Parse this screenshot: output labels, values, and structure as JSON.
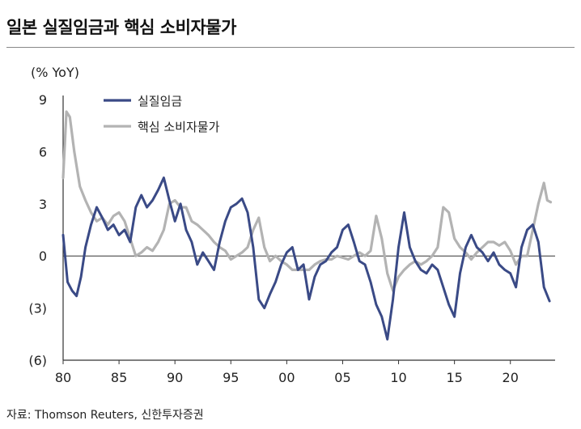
{
  "title": "일본 실질임금과 핵심 소비자물가",
  "source": "자료: Thomson Reuters, 신한투자증권",
  "colors": {
    "real_wage": "#3a4a86",
    "core_cpi": "#b3b3b3",
    "axis": "#333333"
  },
  "chart_data": {
    "type": "line",
    "title": "일본 실질임금과 핵심 소비자물가",
    "ylabel": "(% YoY)",
    "xlabel": "",
    "ylim": [
      -6,
      9
    ],
    "xlim": [
      1980,
      2024
    ],
    "yticks": [
      9,
      6,
      3,
      0,
      -3,
      -6
    ],
    "ytick_labels": [
      "9",
      "6",
      "3",
      "0",
      "(3)",
      "(6)"
    ],
    "xticks": [
      1980,
      1985,
      1990,
      1995,
      2000,
      2005,
      2010,
      2015,
      2020
    ],
    "xtick_labels": [
      "80",
      "85",
      "90",
      "95",
      "00",
      "05",
      "10",
      "15",
      "20"
    ],
    "legend_position": "top-left",
    "series": [
      {
        "name": "실질임금",
        "color": "#3a4a86",
        "x": [
          1980.0,
          1980.4,
          1980.8,
          1981.2,
          1981.6,
          1982.0,
          1982.5,
          1983.0,
          1983.5,
          1984.0,
          1984.5,
          1985.0,
          1985.5,
          1986.0,
          1986.5,
          1987.0,
          1987.5,
          1988.0,
          1988.5,
          1989.0,
          1989.5,
          1990.0,
          1990.5,
          1991.0,
          1991.5,
          1992.0,
          1992.5,
          1993.0,
          1993.5,
          1994.0,
          1994.5,
          1995.0,
          1995.5,
          1996.0,
          1996.5,
          1997.0,
          1997.5,
          1998.0,
          1998.5,
          1999.0,
          1999.5,
          2000.0,
          2000.5,
          2001.0,
          2001.5,
          2002.0,
          2002.5,
          2003.0,
          2003.5,
          2004.0,
          2004.5,
          2005.0,
          2005.5,
          2006.0,
          2006.5,
          2007.0,
          2007.5,
          2008.0,
          2008.5,
          2009.0,
          2009.5,
          2010.0,
          2010.5,
          2011.0,
          2011.5,
          2012.0,
          2012.5,
          2013.0,
          2013.5,
          2014.0,
          2014.5,
          2015.0,
          2015.5,
          2016.0,
          2016.5,
          2017.0,
          2017.5,
          2018.0,
          2018.5,
          2019.0,
          2019.5,
          2020.0,
          2020.5,
          2021.0,
          2021.5,
          2022.0,
          2022.5,
          2023.0,
          2023.5
        ],
        "values": [
          1.2,
          -1.5,
          -2.0,
          -2.3,
          -1.2,
          0.5,
          1.8,
          2.8,
          2.2,
          1.5,
          1.8,
          1.2,
          1.5,
          0.8,
          2.8,
          3.5,
          2.8,
          3.2,
          3.8,
          4.5,
          3.2,
          2.0,
          3.0,
          1.5,
          0.8,
          -0.5,
          0.2,
          -0.3,
          -0.8,
          0.8,
          2.0,
          2.8,
          3.0,
          3.3,
          2.5,
          0.5,
          -2.5,
          -3.0,
          -2.2,
          -1.5,
          -0.5,
          0.2,
          0.5,
          -0.8,
          -0.5,
          -2.5,
          -1.2,
          -0.5,
          -0.3,
          0.2,
          0.5,
          1.5,
          1.8,
          0.8,
          -0.3,
          -0.5,
          -1.5,
          -2.8,
          -3.5,
          -4.8,
          -2.5,
          0.5,
          2.5,
          0.5,
          -0.3,
          -0.8,
          -1.0,
          -0.5,
          -0.8,
          -1.8,
          -2.8,
          -3.5,
          -1.0,
          0.5,
          1.2,
          0.5,
          0.2,
          -0.3,
          0.2,
          -0.5,
          -0.8,
          -1.0,
          -1.8,
          0.5,
          1.5,
          1.8,
          0.8,
          -1.8,
          -2.6
        ]
      },
      {
        "name": "핵심 소비자물가",
        "color": "#b3b3b3",
        "x": [
          1980.0,
          1980.3,
          1980.6,
          1981.0,
          1981.5,
          1982.0,
          1982.5,
          1983.0,
          1983.5,
          1984.0,
          1984.5,
          1985.0,
          1985.5,
          1986.0,
          1986.5,
          1987.0,
          1987.5,
          1988.0,
          1988.5,
          1989.0,
          1989.5,
          1990.0,
          1990.5,
          1991.0,
          1991.5,
          1992.0,
          1992.5,
          1993.0,
          1993.5,
          1994.0,
          1994.5,
          1995.0,
          1995.5,
          1996.0,
          1996.5,
          1997.0,
          1997.5,
          1998.0,
          1998.5,
          1999.0,
          1999.5,
          2000.0,
          2000.5,
          2001.0,
          2001.5,
          2002.0,
          2002.5,
          2003.0,
          2003.5,
          2004.0,
          2004.5,
          2005.0,
          2005.5,
          2006.0,
          2006.5,
          2007.0,
          2007.5,
          2008.0,
          2008.5,
          2009.0,
          2009.5,
          2010.0,
          2010.5,
          2011.0,
          2011.5,
          2012.0,
          2012.5,
          2013.0,
          2013.5,
          2014.0,
          2014.5,
          2015.0,
          2015.5,
          2016.0,
          2016.5,
          2017.0,
          2017.5,
          2018.0,
          2018.5,
          2019.0,
          2019.5,
          2020.0,
          2020.5,
          2021.0,
          2021.5,
          2022.0,
          2022.5,
          2023.0,
          2023.3,
          2023.6
        ],
        "values": [
          4.5,
          8.3,
          8.0,
          6.0,
          4.0,
          3.2,
          2.5,
          2.0,
          2.2,
          1.8,
          2.3,
          2.5,
          2.0,
          1.0,
          0.0,
          0.2,
          0.5,
          0.3,
          0.8,
          1.5,
          3.0,
          3.2,
          2.8,
          2.8,
          2.0,
          1.8,
          1.5,
          1.2,
          0.8,
          0.5,
          0.3,
          -0.2,
          0.0,
          0.2,
          0.5,
          1.5,
          2.2,
          0.5,
          -0.3,
          0.0,
          -0.3,
          -0.5,
          -0.8,
          -0.8,
          -0.8,
          -0.8,
          -0.5,
          -0.3,
          -0.2,
          -0.2,
          0.0,
          -0.1,
          -0.2,
          0.0,
          0.2,
          0.0,
          0.3,
          2.3,
          1.0,
          -1.0,
          -2.0,
          -1.2,
          -0.8,
          -0.5,
          -0.3,
          -0.5,
          -0.3,
          0.0,
          0.5,
          2.8,
          2.5,
          1.0,
          0.5,
          0.2,
          -0.2,
          0.2,
          0.5,
          0.8,
          0.8,
          0.6,
          0.8,
          0.3,
          -0.5,
          0.0,
          0.0,
          1.5,
          3.0,
          4.2,
          3.2,
          3.1
        ]
      }
    ]
  }
}
